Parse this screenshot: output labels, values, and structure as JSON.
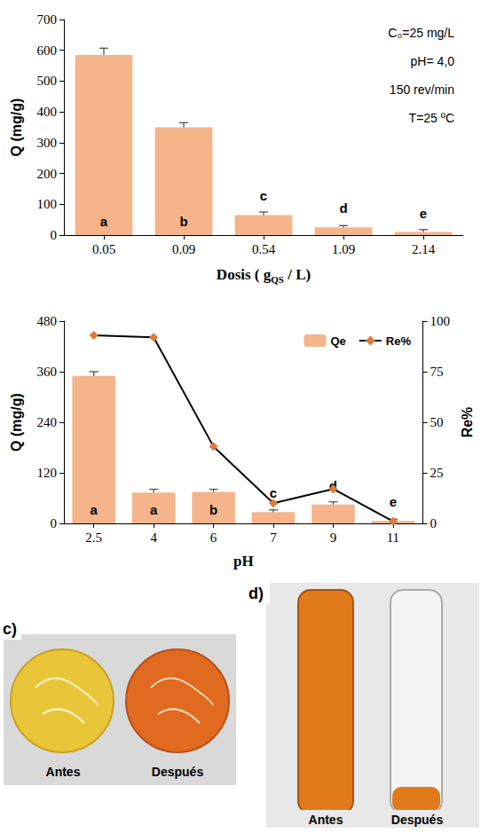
{
  "chart_data": [
    {
      "type": "bar",
      "ylabel": "Q (mg/g)",
      "xlabel": [
        "Dosis ( g",
        "QS",
        " / L)"
      ],
      "categories": [
        "0.05",
        "0.09",
        "0.54",
        "1.09",
        "2.14"
      ],
      "values": [
        585,
        350,
        65,
        25,
        10
      ],
      "errors": [
        22,
        15,
        10,
        6,
        8
      ],
      "letters": [
        "a",
        "b",
        "c",
        "d",
        "e"
      ],
      "color": "#f5b48a",
      "ylim": [
        0,
        700
      ],
      "yticks": [
        0,
        100,
        200,
        300,
        400,
        500,
        600,
        700
      ],
      "grid": false,
      "annotations": [
        "C₀=25 mg/L",
        "pH= 4,0",
        "150 rev/min",
        "T=25 ºC"
      ]
    },
    {
      "type": "bar",
      "xlabel": "pH",
      "ylabel": "Q (mg/g)",
      "y2label": "Re%",
      "categories": [
        "2.5",
        "4",
        "6",
        "7",
        "9",
        "11"
      ],
      "series": [
        {
          "name": "Qe",
          "type": "bar",
          "color": "#f5b48a",
          "values": [
            350,
            73,
            75,
            27,
            45,
            6
          ],
          "errors": [
            10,
            8,
            6,
            5,
            6,
            4
          ],
          "letters": [
            "a",
            "a",
            "b",
            "c",
            "d",
            "e"
          ]
        },
        {
          "name": "Re%",
          "type": "line",
          "axis": "y2",
          "color": "#e07b39",
          "marker": "diamond",
          "line_style": "solid",
          "values": [
            93,
            92,
            38,
            10,
            17,
            1
          ]
        }
      ],
      "ylim": [
        0,
        480
      ],
      "yticks": [
        0,
        120,
        240,
        360,
        480
      ],
      "y2lim": [
        0,
        100
      ],
      "y2ticks": [
        0,
        25,
        50,
        75,
        100
      ],
      "grid": false,
      "legend": "top-right"
    }
  ],
  "photos": [
    {
      "letter": "c)",
      "labels": [
        "Antes",
        "Después"
      ]
    },
    {
      "letter": "d)",
      "labels": [
        "Antes",
        "Después"
      ]
    }
  ]
}
